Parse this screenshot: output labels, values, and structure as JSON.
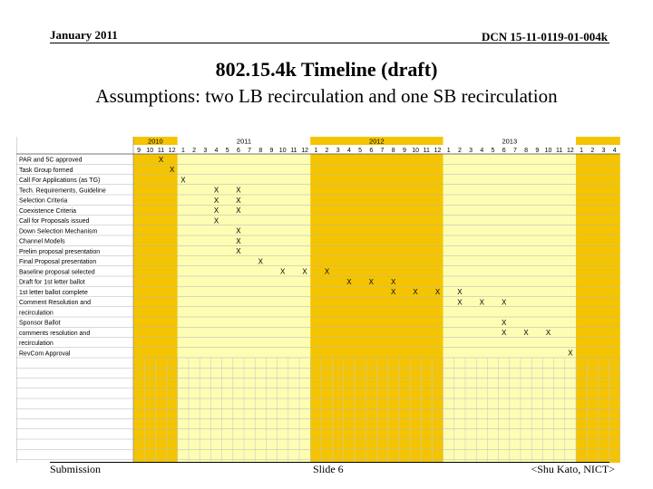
{
  "header": {
    "date": "January 2011",
    "doc_number": "DCN 15-11-0119-01-004k"
  },
  "slide": {
    "title": "802.15.4k Timeline (draft)",
    "subtitle": "Assumptions: two LB recirculation and one SB recirculation"
  },
  "footer": {
    "left": "Submission",
    "center": "Slide 6",
    "right": "<Shu Kato, NICT>"
  },
  "chart_data": {
    "type": "table",
    "title": "Gantt timeline",
    "years": [
      {
        "label": "2010",
        "months": 4
      },
      {
        "label": "2011",
        "months": 12
      },
      {
        "label": "2012",
        "months": 12
      },
      {
        "label": "2013",
        "months": 12
      },
      {
        "label": "",
        "months": 4
      }
    ],
    "months": [
      "9",
      "10",
      "11",
      "12",
      "1",
      "2",
      "3",
      "4",
      "5",
      "6",
      "7",
      "8",
      "9",
      "10",
      "11",
      "12",
      "1",
      "2",
      "3",
      "4",
      "5",
      "6",
      "7",
      "8",
      "9",
      "10",
      "11",
      "12",
      "1",
      "2",
      "3",
      "4",
      "5",
      "6",
      "7",
      "8",
      "9",
      "10",
      "11",
      "12",
      "1",
      "2",
      "3",
      "4"
    ],
    "marker": "X",
    "rows": [
      {
        "label": "PAR and 5C approved",
        "marks": [
          [
            0,
            2
          ]
        ]
      },
      {
        "label": "Task Group formed",
        "marks": [
          [
            0,
            3
          ]
        ]
      },
      {
        "label": "Call For Applications (as TG)",
        "marks": [
          [
            0,
            4
          ]
        ]
      },
      {
        "label": "Tech. Requirements, Guideline",
        "marks": [
          [
            0,
            7
          ],
          [
            0,
            9
          ]
        ]
      },
      {
        "label": "Selection Criteria",
        "marks": [
          [
            0,
            7
          ],
          [
            0,
            9
          ]
        ]
      },
      {
        "label": "Coexistence Criteria",
        "marks": [
          [
            0,
            7
          ],
          [
            0,
            9
          ]
        ]
      },
      {
        "label": "Call for Proposals issued",
        "marks": [
          [
            0,
            7
          ]
        ]
      },
      {
        "label": "Down Selection Mechanism",
        "marks": [
          [
            0,
            9
          ]
        ]
      },
      {
        "label": "Channel Models",
        "marks": [
          [
            0,
            9
          ]
        ]
      },
      {
        "label": "Prelim proposal presentation",
        "marks": [
          [
            0,
            9
          ]
        ]
      },
      {
        "label": "Final Proposal presentation",
        "marks": [
          [
            0,
            11
          ]
        ]
      },
      {
        "label": "Baseline proposal selected",
        "marks": [
          [
            0,
            13
          ],
          [
            0,
            15
          ],
          [
            0,
            17
          ]
        ]
      },
      {
        "label": "Draft for 1st letter ballot",
        "marks": [
          [
            0,
            19
          ],
          [
            0,
            21
          ],
          [
            0,
            23
          ]
        ]
      },
      {
        "label": "1st letter ballot complete",
        "marks": [
          [
            0,
            23
          ],
          [
            0,
            25
          ],
          [
            0,
            27
          ],
          [
            0,
            29
          ]
        ]
      },
      {
        "label": "Comment Resolution and",
        "marks": [
          [
            0,
            29
          ],
          [
            0,
            31
          ],
          [
            0,
            33
          ]
        ]
      },
      {
        "label": "recirculation",
        "marks": []
      },
      {
        "label": "Sponsor Ballot",
        "marks": [
          [
            0,
            33
          ]
        ]
      },
      {
        "label": "comments resolution and",
        "marks": [
          [
            0,
            33
          ],
          [
            0,
            35
          ],
          [
            0,
            37
          ]
        ]
      },
      {
        "label": "recirculation",
        "marks": []
      },
      {
        "label": "RevCom Approval",
        "marks": [
          [
            0,
            39
          ]
        ]
      }
    ]
  }
}
